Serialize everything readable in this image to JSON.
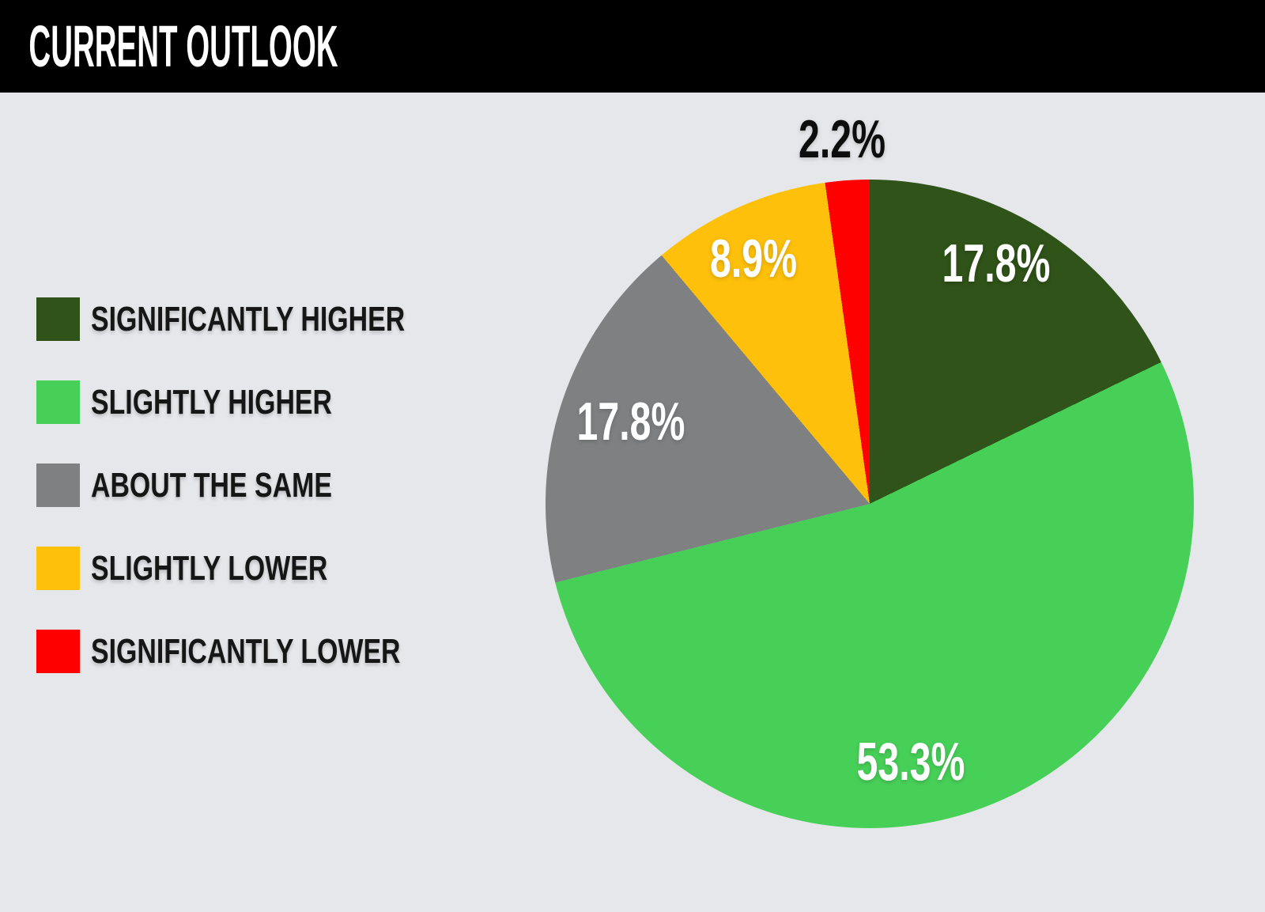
{
  "header": {
    "title": "CURRENT OUTLOOK"
  },
  "chart_data": {
    "type": "pie",
    "title": "CURRENT OUTLOOK",
    "unit": "percent",
    "start_angle_deg": 0,
    "direction": "clockwise",
    "legend_position": "left",
    "background_color": "#e6e7eb",
    "header_bg_color": "#000000",
    "slices": [
      {
        "label": "SIGNIFICANTLY HIGHER",
        "value": 17.8,
        "display": "17.8%",
        "color": "#2f5318",
        "label_color": "#ffffff",
        "label_placement": "inside"
      },
      {
        "label": "SLIGHTLY HIGHER",
        "value": 53.3,
        "display": "53.3%",
        "color": "#47d058",
        "label_color": "#ffffff",
        "label_placement": "inside"
      },
      {
        "label": "ABOUT THE SAME",
        "value": 17.8,
        "display": "17.8%",
        "color": "#7e8082",
        "label_color": "#ffffff",
        "label_placement": "inside"
      },
      {
        "label": "SLIGHTLY LOWER",
        "value": 8.9,
        "display": "8.9%",
        "color": "#fec00a",
        "label_color": "#ffffff",
        "label_placement": "inside"
      },
      {
        "label": "SIGNIFICANTLY LOWER",
        "value": 2.2,
        "display": "2.2%",
        "color": "#fe0000",
        "label_color": "#0d0d0d",
        "label_placement": "outside"
      }
    ]
  }
}
